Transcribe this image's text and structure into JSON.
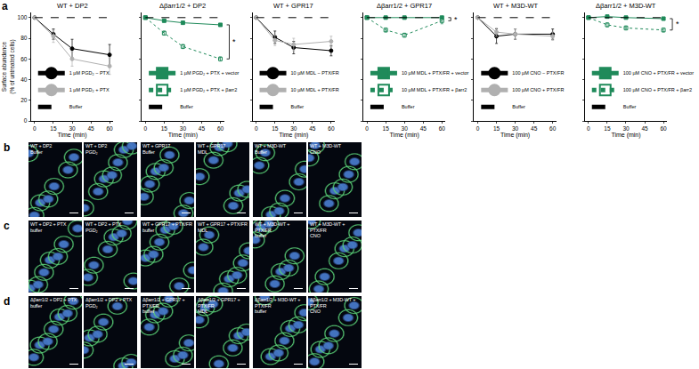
{
  "chart_data": [
    {
      "type": "line",
      "title": "WT + DP2",
      "xlabel": "Time (min)",
      "ylabel": [
        "Surface abundance",
        "(% of untreated cells)"
      ],
      "x": [
        0,
        15,
        30,
        60
      ],
      "xlim": [
        -3,
        63
      ],
      "xticks": [
        0,
        15,
        30,
        45,
        60
      ],
      "ylim": [
        0,
        105
      ],
      "yticks": [
        0,
        20,
        40,
        60,
        80,
        100
      ],
      "grid": false,
      "legend": "lower left",
      "series": [
        {
          "name": "1 µM PGD₂ − PTX",
          "color": "#000000",
          "marker": "circle",
          "line_style": "solid",
          "values": [
            100,
            84,
            70,
            64
          ],
          "errors": [
            0,
            5,
            9,
            10
          ]
        },
        {
          "name": "1 µM PGD₂ + PTX",
          "color": "#b0b0b0",
          "marker": "circle",
          "line_style": "solid",
          "values": [
            100,
            82,
            60,
            53
          ],
          "errors": [
            0,
            6,
            7,
            8
          ]
        },
        {
          "name": "Buffer",
          "color": "#000000",
          "line_style": "dashed",
          "values": [
            100,
            100,
            100,
            100
          ]
        }
      ]
    },
    {
      "type": "line",
      "title": "Δβarr1/2 + DP2",
      "xlabel": "Time (min)",
      "x": [
        0,
        15,
        30,
        60
      ],
      "xlim": [
        -3,
        63
      ],
      "xticks": [
        0,
        15,
        30,
        45,
        60
      ],
      "ylim": [
        0,
        105
      ],
      "yticks": [
        0,
        20,
        40,
        60,
        80,
        100
      ],
      "grid": false,
      "legend": "lower left",
      "tick_labels": "x",
      "annotations": [
        "*"
      ],
      "series": [
        {
          "name": "1 µM PGD₂ + PTX + vector",
          "color": "#1f8a5a",
          "marker": "square",
          "line_style": "solid",
          "values": [
            100,
            97,
            95,
            93
          ],
          "errors": [
            0,
            1,
            1,
            1
          ]
        },
        {
          "name": "1 µM PGD₂ + PTX + βarr2",
          "color": "#1f8a5a",
          "marker": "open square",
          "line_style": "dotted",
          "values": [
            100,
            85,
            72,
            60
          ],
          "errors": [
            0,
            2,
            2,
            2
          ]
        },
        {
          "name": "Buffer",
          "color": "#000000",
          "line_style": "dashed",
          "values": [
            100,
            100,
            100,
            100
          ]
        }
      ]
    },
    {
      "type": "line",
      "title": "WT + GPR17",
      "xlabel": "Time (min)",
      "x": [
        0,
        15,
        30,
        60
      ],
      "xlim": [
        -3,
        63
      ],
      "xticks": [
        0,
        15,
        30,
        45,
        60
      ],
      "ylim": [
        0,
        105
      ],
      "yticks": [
        0,
        20,
        40,
        60,
        80,
        100
      ],
      "grid": false,
      "legend": "lower left",
      "tick_labels": "x",
      "series": [
        {
          "name": "10 µM MDL − PTX/FR",
          "color": "#000000",
          "marker": "circle",
          "line_style": "solid",
          "values": [
            100,
            81,
            71,
            68
          ],
          "errors": [
            0,
            6,
            6,
            5
          ]
        },
        {
          "name": "10 µM MDL + PTX/FR",
          "color": "#b0b0b0",
          "marker": "circle",
          "line_style": "solid",
          "values": [
            100,
            78,
            74,
            77
          ],
          "errors": [
            0,
            5,
            6,
            5
          ]
        },
        {
          "name": "Buffer",
          "color": "#000000",
          "line_style": "dashed",
          "values": [
            100,
            100,
            100,
            100
          ]
        }
      ]
    },
    {
      "type": "line",
      "title": "Δβarr1/2 + GPR17",
      "xlabel": "Time (min)",
      "x": [
        0,
        15,
        30,
        60
      ],
      "xlim": [
        -3,
        63
      ],
      "xticks": [
        0,
        15,
        30,
        45,
        60
      ],
      "ylim": [
        0,
        105
      ],
      "yticks": [
        0,
        20,
        40,
        60,
        80,
        100
      ],
      "grid": false,
      "legend": "lower left",
      "tick_labels": "x",
      "annotations": [
        "*"
      ],
      "series": [
        {
          "name": "10 µM MDL + PTX/FR + vector",
          "color": "#1f8a5a",
          "marker": "square",
          "line_style": "solid",
          "values": [
            100,
            100,
            100,
            100
          ],
          "errors": [
            0,
            1,
            1,
            1
          ]
        },
        {
          "name": "10 µM MDL + PTX/FR + βarr2",
          "color": "#1f8a5a",
          "marker": "open square",
          "line_style": "dotted",
          "values": [
            100,
            88,
            83,
            97
          ],
          "errors": [
            0,
            2,
            2,
            3
          ]
        },
        {
          "name": "Buffer",
          "color": "#000000",
          "line_style": "dashed",
          "values": [
            100,
            100,
            100,
            100
          ]
        }
      ]
    },
    {
      "type": "line",
      "title": "WT + M3D-WT",
      "xlabel": "Time (min)",
      "x": [
        0,
        15,
        30,
        60
      ],
      "xlim": [
        -3,
        63
      ],
      "xticks": [
        0,
        15,
        30,
        45,
        60
      ],
      "ylim": [
        0,
        105
      ],
      "yticks": [
        0,
        20,
        40,
        60,
        80,
        100
      ],
      "grid": false,
      "legend": "lower left",
      "tick_labels": "x",
      "series": [
        {
          "name": "100 µM CNO − PTX/FR",
          "color": "#000000",
          "marker": "circle",
          "line_style": "solid",
          "values": [
            100,
            82,
            84,
            84
          ],
          "errors": [
            0,
            7,
            5,
            5
          ]
        },
        {
          "name": "100 µM CNO + PTX/FR",
          "color": "#b0b0b0",
          "marker": "circle",
          "line_style": "solid",
          "values": [
            100,
            86,
            84,
            82
          ],
          "errors": [
            0,
            4,
            5,
            4
          ]
        },
        {
          "name": "Buffer",
          "color": "#000000",
          "line_style": "dashed",
          "values": [
            100,
            100,
            100,
            100
          ]
        }
      ]
    },
    {
      "type": "line",
      "title": "Δβarr1/2 + M3D-WT",
      "xlabel": "Time (min)",
      "x": [
        0,
        15,
        30,
        60
      ],
      "xlim": [
        -3,
        63
      ],
      "xticks": [
        0,
        15,
        30,
        45,
        60
      ],
      "ylim": [
        0,
        105
      ],
      "yticks": [
        0,
        20,
        40,
        60,
        80,
        100
      ],
      "grid": false,
      "legend": "lower left",
      "tick_labels": "x",
      "annotations": [
        "*"
      ],
      "series": [
        {
          "name": "100 µM CNO + PTX/FR + vector",
          "color": "#1f8a5a",
          "marker": "square",
          "line_style": "solid",
          "values": [
            100,
            101,
            100,
            99
          ],
          "errors": [
            0,
            1,
            1,
            1
          ]
        },
        {
          "name": "100 µM CNO + PTX/FR + βarr2",
          "color": "#1f8a5a",
          "marker": "open square",
          "line_style": "dotted",
          "values": [
            100,
            93,
            90,
            88
          ],
          "errors": [
            0,
            2,
            2,
            2
          ]
        },
        {
          "name": "Buffer",
          "color": "#000000",
          "line_style": "dashed",
          "values": [
            100,
            100,
            100,
            100
          ]
        }
      ]
    }
  ],
  "figure": {
    "chart_letter": "a",
    "image_rows": [
      {
        "letter": "b",
        "images": [
          [
            "WT + DP2",
            "Buffer"
          ],
          [
            "WT + DP2",
            "PGD₂"
          ],
          [
            "WT + GPR17",
            "Buffer"
          ],
          [
            "WT + GPR17",
            "MDL"
          ],
          [
            "WT + M3D-WT",
            "Buffer"
          ],
          [
            "WT + M3D-WT",
            "CNO"
          ]
        ]
      },
      {
        "letter": "c",
        "images": [
          [
            "WT + DP2 + PTX",
            "buffer"
          ],
          [
            "WT + DP2 + PTX",
            "PGD₂"
          ],
          [
            "WT + GPR17 + PTX/FR",
            "buffer"
          ],
          [
            "WT + GPR17 + PTX/FR",
            "MDL"
          ],
          [
            "WT + M3D-WT + PTX/FR",
            "buffer"
          ],
          [
            "WT + M3D-WT + PTX/FR",
            "CNO"
          ]
        ]
      },
      {
        "letter": "d",
        "images": [
          [
            "Δβarr1/2 + DP2 + PTX",
            "buffer"
          ],
          [
            "Δβarr1/2 + DP2 + PTX",
            "PGD₂"
          ],
          [
            "Δβarr1/2 + GPR17 + PTX/FR",
            "buffer"
          ],
          [
            "Δβarr1/2 + GPR17 + PTX/FR",
            "MDL"
          ],
          [
            "Δβarr1/2 + M3D-WT + PTX/FR",
            "buffer"
          ],
          [
            "Δβarr1/2 + M3D-WT + PTX/FR",
            "CNO"
          ]
        ]
      }
    ]
  }
}
